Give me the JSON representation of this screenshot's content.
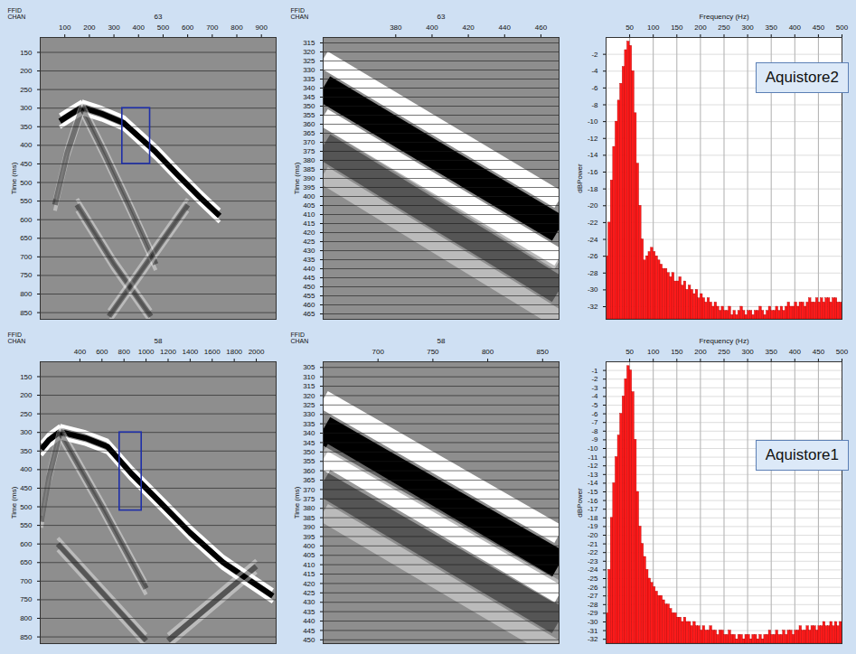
{
  "chart_data": [
    {
      "type": "seismic",
      "header": [
        "FFID",
        "CHAN"
      ],
      "record": "63",
      "y_label": "Time (ms)",
      "xlim": [
        0,
        960
      ],
      "xticks": [
        100,
        200,
        300,
        400,
        500,
        600,
        700,
        800,
        900
      ],
      "ylim": [
        110,
        868
      ],
      "yticks": [
        150,
        200,
        250,
        300,
        350,
        400,
        450,
        500,
        550,
        600,
        650,
        700,
        750,
        800,
        850
      ],
      "grid": true,
      "events": [
        {
          "x": [
            170,
            250,
            340,
            470,
            560,
            650,
            730
          ],
          "values": [
            298,
            315,
            340,
            418,
            480,
            540,
            590
          ],
          "amplitude": 1
        },
        {
          "x": [
            170,
            120,
            80
          ],
          "values": [
            298,
            318,
            335
          ],
          "amplitude": 1
        },
        {
          "x": [
            170,
            260,
            360,
            470
          ],
          "values": [
            300,
            420,
            560,
            720
          ],
          "amplitude": 0.4
        },
        {
          "x": [
            170,
            110,
            60
          ],
          "values": [
            300,
            420,
            560
          ],
          "amplitude": 0.4
        },
        {
          "x": [
            150,
            300,
            450
          ],
          "values": [
            560,
            720,
            860
          ],
          "amplitude": 0.4
        },
        {
          "x": [
            280,
            430,
            600
          ],
          "values": [
            860,
            720,
            560
          ],
          "amplitude": 0.4
        }
      ],
      "box": {
        "x": [
          334,
          447
        ],
        "y": [
          300,
          450
        ]
      }
    },
    {
      "type": "seismic",
      "header": [
        "FFID",
        "CHAN"
      ],
      "record": "63",
      "y_label": "Time (ms)",
      "xlim": [
        340,
        470
      ],
      "xticks": [
        380,
        400,
        420,
        440,
        460
      ],
      "ylim": [
        312,
        468
      ],
      "yticks": [
        315,
        320,
        325,
        330,
        335,
        340,
        345,
        350,
        355,
        360,
        365,
        370,
        375,
        380,
        385,
        390,
        395,
        400,
        405,
        410,
        415,
        420,
        425,
        430,
        435,
        440,
        445,
        450,
        455,
        460,
        465
      ],
      "grid": true,
      "events": [
        {
          "x": [
            340,
            470
          ],
          "values": [
            340,
            418
          ],
          "amplitude": 1
        },
        {
          "x": [
            340,
            470
          ],
          "values": [
            372,
            452
          ],
          "amplitude": 0.4
        }
      ]
    },
    {
      "type": "histogram",
      "title": "Aquistore2",
      "x_label": "Frequency (Hz)",
      "y_label": "dBPower",
      "bins": [
        0,
        5,
        10,
        15,
        20,
        25,
        30,
        35,
        40,
        45,
        50,
        55,
        60,
        65,
        70,
        75,
        80,
        85,
        90,
        95,
        100,
        105,
        110,
        115,
        120,
        125,
        130,
        135,
        140,
        145,
        150,
        155,
        160,
        165,
        170,
        175,
        180,
        185,
        190,
        195,
        200,
        205,
        210,
        215,
        220,
        225,
        230,
        235,
        240,
        245,
        250,
        255,
        260,
        265,
        270,
        275,
        280,
        285,
        290,
        295,
        300,
        305,
        310,
        315,
        320,
        325,
        330,
        335,
        340,
        345,
        350,
        355,
        360,
        365,
        370,
        375,
        380,
        385,
        390,
        395,
        400,
        405,
        410,
        415,
        420,
        425,
        430,
        435,
        440,
        445,
        450,
        455,
        460,
        465,
        470,
        475,
        480,
        485,
        490,
        495,
        500
      ],
      "values": [
        -26,
        -22,
        -17,
        -13,
        -10,
        -7.5,
        -5.5,
        -3.5,
        -1.5,
        -0.5,
        -1,
        -4,
        -9,
        -15,
        -20,
        -24,
        -26.5,
        -26,
        -25.5,
        -25,
        -25.5,
        -26,
        -26.5,
        -27,
        -27.5,
        -27.5,
        -28,
        -28.5,
        -28,
        -29,
        -29,
        -28.5,
        -29.5,
        -29,
        -30,
        -29.5,
        -30,
        -30.5,
        -30,
        -31,
        -30.5,
        -31,
        -31.5,
        -31,
        -31.5,
        -32,
        -31.5,
        -32,
        -32.5,
        -32,
        -32.5,
        -32.5,
        -32,
        -33,
        -32.5,
        -33,
        -32.5,
        -32,
        -32.5,
        -33,
        -32.5,
        -32.5,
        -33,
        -32.5,
        -32.5,
        -32,
        -32.5,
        -33,
        -32.5,
        -32,
        -32.5,
        -32.5,
        -32,
        -32.5,
        -32,
        -32.5,
        -32,
        -31.5,
        -32,
        -32,
        -31.5,
        -32,
        -31.5,
        -31.5,
        -32,
        -31.5,
        -31,
        -31.5,
        -31.5,
        -31,
        -31.5,
        -31,
        -31.5,
        -31,
        -31,
        -31.5,
        -31,
        -31,
        -31.5,
        -31.5
      ],
      "color": "#ff1a1a",
      "xlim": [
        0,
        500
      ],
      "xticks": [
        50,
        100,
        150,
        200,
        250,
        300,
        350,
        400,
        450,
        500
      ],
      "ylim": [
        -33.5,
        0
      ],
      "yticks": [
        -2,
        -4,
        -6,
        -8,
        -10,
        -12,
        -14,
        -16,
        -18,
        -20,
        -22,
        -24,
        -26,
        -28,
        -30,
        -32
      ],
      "grid": true
    },
    {
      "type": "seismic",
      "header": [
        "FFID",
        "CHAN"
      ],
      "record": "58",
      "y_label": "Time (ms)",
      "xlim": [
        40,
        2180
      ],
      "xticks": [
        400,
        600,
        800,
        1000,
        1200,
        1400,
        1600,
        1800,
        2000
      ],
      "ylim": [
        110,
        868
      ],
      "yticks": [
        150,
        200,
        250,
        300,
        350,
        400,
        450,
        500,
        550,
        600,
        650,
        700,
        750,
        800,
        850
      ],
      "grid": true,
      "events": [
        {
          "x": [
            220,
            450,
            650,
            865,
            1100,
            1400,
            1700,
            2000,
            2150
          ],
          "values": [
            298,
            315,
            338,
            410,
            480,
            570,
            650,
            710,
            740
          ],
          "amplitude": 1
        },
        {
          "x": [
            220,
            120,
            50
          ],
          "values": [
            298,
            320,
            345
          ],
          "amplitude": 1
        },
        {
          "x": [
            220,
            600,
            1000
          ],
          "values": [
            300,
            500,
            720
          ],
          "amplitude": 0.4
        },
        {
          "x": [
            220,
            120,
            50
          ],
          "values": [
            300,
            420,
            540
          ],
          "amplitude": 0.4
        },
        {
          "x": [
            200,
            600,
            1000
          ],
          "values": [
            600,
            730,
            860
          ],
          "amplitude": 0.4
        },
        {
          "x": [
            1200,
            1600,
            2000
          ],
          "values": [
            860,
            760,
            660
          ],
          "amplitude": 0.4
        }
      ],
      "box": {
        "x": [
          760,
          960
        ],
        "y": [
          300,
          510
        ]
      }
    },
    {
      "type": "seismic",
      "header": [
        "FFID",
        "CHAN"
      ],
      "record": "58",
      "y_label": "Time (ms)",
      "xlim": [
        650,
        865
      ],
      "xticks": [
        700,
        750,
        800,
        850
      ],
      "ylim": [
        302,
        452
      ],
      "yticks": [
        305,
        310,
        315,
        320,
        325,
        330,
        335,
        340,
        345,
        350,
        355,
        360,
        365,
        370,
        375,
        380,
        385,
        390,
        395,
        400,
        405,
        410,
        415,
        420,
        425,
        430,
        435,
        440,
        445,
        450
      ],
      "grid": true,
      "events": [
        {
          "x": [
            650,
            865
          ],
          "values": [
            338,
            410
          ],
          "amplitude": 1
        },
        {
          "x": [
            650,
            865
          ],
          "values": [
            366,
            440
          ],
          "amplitude": 0.4
        }
      ]
    },
    {
      "type": "histogram",
      "title": "Aquistore1",
      "x_label": "Frequency (Hz)",
      "y_label": "dBPower",
      "bins": [
        0,
        5,
        10,
        15,
        20,
        25,
        30,
        35,
        40,
        45,
        50,
        55,
        60,
        65,
        70,
        75,
        80,
        85,
        90,
        95,
        100,
        105,
        110,
        115,
        120,
        125,
        130,
        135,
        140,
        145,
        150,
        155,
        160,
        165,
        170,
        175,
        180,
        185,
        190,
        195,
        200,
        205,
        210,
        215,
        220,
        225,
        230,
        235,
        240,
        245,
        250,
        255,
        260,
        265,
        270,
        275,
        280,
        285,
        290,
        295,
        300,
        305,
        310,
        315,
        320,
        325,
        330,
        335,
        340,
        345,
        350,
        355,
        360,
        365,
        370,
        375,
        380,
        385,
        390,
        395,
        400,
        405,
        410,
        415,
        420,
        425,
        430,
        435,
        440,
        445,
        450,
        455,
        460,
        465,
        470,
        475,
        480,
        485,
        490,
        495,
        500
      ],
      "values": [
        -29,
        -24,
        -18,
        -14,
        -11,
        -8.5,
        -6,
        -4,
        -2,
        -0.5,
        -1,
        -3.5,
        -9,
        -15,
        -19,
        -21,
        -22.5,
        -24,
        -25,
        -25.5,
        -26,
        -26.5,
        -27,
        -27,
        -27.5,
        -28,
        -28,
        -28.5,
        -29,
        -29,
        -29.5,
        -29.5,
        -30,
        -29.5,
        -30,
        -30,
        -30.5,
        -30,
        -30.5,
        -30.5,
        -31,
        -30.5,
        -31,
        -31,
        -30.5,
        -31,
        -31,
        -31.5,
        -31,
        -31,
        -31.5,
        -31.5,
        -31,
        -31.5,
        -31.5,
        -32,
        -31.5,
        -31.5,
        -32,
        -31.5,
        -31.5,
        -32,
        -31.5,
        -31.5,
        -32,
        -31.5,
        -32,
        -31.5,
        -31.5,
        -31,
        -31.5,
        -31.5,
        -31,
        -31.5,
        -31.5,
        -31,
        -31.5,
        -31,
        -31,
        -31.5,
        -31,
        -31,
        -30.5,
        -31,
        -31,
        -30.5,
        -31,
        -30.5,
        -30.5,
        -31,
        -30.5,
        -30.5,
        -30,
        -30.5,
        -30.5,
        -30,
        -30.5,
        -30,
        -30.5,
        -30
      ],
      "color": "#ff1a1a",
      "xlim": [
        0,
        500
      ],
      "xticks": [
        50,
        100,
        150,
        200,
        250,
        300,
        350,
        400,
        450,
        500
      ],
      "ylim": [
        -32.5,
        0
      ],
      "yticks": [
        -1,
        -2,
        -3,
        -4,
        -5,
        -6,
        -7,
        -8,
        -9,
        -10,
        -11,
        -12,
        -13,
        -14,
        -15,
        -16,
        -17,
        -18,
        -19,
        -20,
        -21,
        -22,
        -23,
        -24,
        -25,
        -26,
        -27,
        -28,
        -29,
        -30,
        -31,
        -32
      ],
      "grid": true
    }
  ]
}
